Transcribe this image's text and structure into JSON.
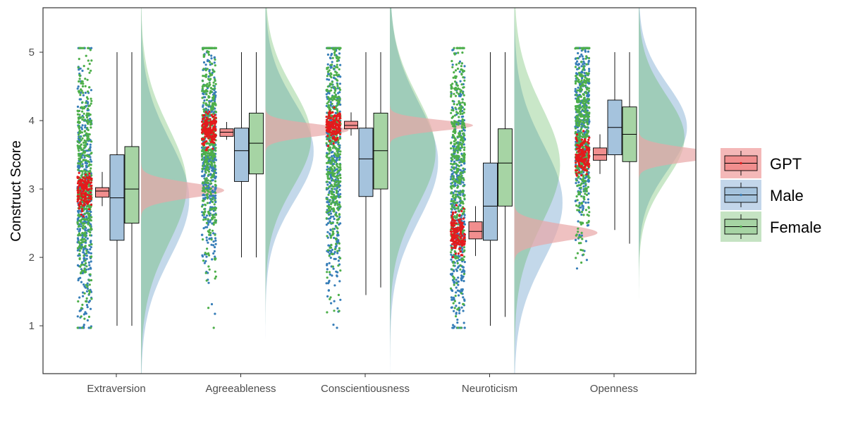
{
  "chart_data": {
    "type": "raincloud",
    "title": "",
    "xlabel": "",
    "ylabel": "Construct Score",
    "ylim": [
      0.3,
      5.65
    ],
    "yticks": [
      1,
      2,
      3,
      4,
      5
    ],
    "grid": false,
    "legend_position": "right",
    "categories": [
      "Extraversion",
      "Agreeableness",
      "Conscientiousness",
      "Neuroticism",
      "Openness"
    ],
    "series": [
      {
        "name": "GPT",
        "fill": "#e41a1c",
        "box": [
          {
            "min": 2.75,
            "q1": 2.88,
            "median": 2.97,
            "q3": 3.02,
            "max": 3.25
          },
          {
            "min": 3.72,
            "q1": 3.77,
            "median": 3.83,
            "q3": 3.88,
            "max": 3.98
          },
          {
            "min": 3.78,
            "q1": 3.88,
            "median": 3.93,
            "q3": 3.99,
            "max": 4.12
          },
          {
            "min": 2.02,
            "q1": 2.27,
            "median": 2.38,
            "q3": 2.52,
            "max": 2.75
          },
          {
            "min": 3.22,
            "q1": 3.42,
            "median": 3.5,
            "q3": 3.6,
            "max": 3.8
          }
        ],
        "density": [
          {
            "mean": 2.98,
            "sd": 0.11,
            "peak": 1.0
          },
          {
            "mean": 3.86,
            "sd": 0.09,
            "peak": 1.0
          },
          {
            "mean": 3.93,
            "sd": 0.08,
            "peak": 1.0
          },
          {
            "mean": 2.36,
            "sd": 0.12,
            "peak": 1.0
          },
          {
            "mean": 3.5,
            "sd": 0.1,
            "peak": 1.0
          }
        ]
      },
      {
        "name": "Male",
        "fill": "#377eb8",
        "box": [
          {
            "min": 1.0,
            "q1": 2.25,
            "median": 2.87,
            "q3": 3.5,
            "max": 5.0
          },
          {
            "min": 2.0,
            "q1": 3.11,
            "median": 3.56,
            "q3": 3.89,
            "max": 5.0
          },
          {
            "min": 1.45,
            "q1": 2.89,
            "median": 3.44,
            "q3": 3.89,
            "max": 5.0
          },
          {
            "min": 1.0,
            "q1": 2.25,
            "median": 2.75,
            "q3": 3.38,
            "max": 5.0
          },
          {
            "min": 2.4,
            "q1": 3.5,
            "median": 3.9,
            "q3": 4.3,
            "max": 5.0
          }
        ],
        "density": [
          {
            "mean": 2.85,
            "sd": 0.85,
            "peak": 0.58
          },
          {
            "mean": 3.55,
            "sd": 0.72,
            "peak": 0.58
          },
          {
            "mean": 3.4,
            "sd": 0.85,
            "peak": 0.58
          },
          {
            "mean": 2.8,
            "sd": 0.85,
            "peak": 0.58
          },
          {
            "mean": 3.9,
            "sd": 0.62,
            "peak": 0.58
          }
        ]
      },
      {
        "name": "Female",
        "fill": "#4daf4a",
        "box": [
          {
            "min": 1.0,
            "q1": 2.5,
            "median": 3.0,
            "q3": 3.62,
            "max": 5.0
          },
          {
            "min": 2.0,
            "q1": 3.22,
            "median": 3.67,
            "q3": 4.11,
            "max": 5.0
          },
          {
            "min": 1.56,
            "q1": 3.0,
            "median": 3.56,
            "q3": 4.11,
            "max": 5.0
          },
          {
            "min": 1.13,
            "q1": 2.75,
            "median": 3.38,
            "q3": 3.88,
            "max": 5.0
          },
          {
            "min": 2.2,
            "q1": 3.4,
            "median": 3.8,
            "q3": 4.2,
            "max": 5.0
          }
        ],
        "density": [
          {
            "mean": 3.05,
            "sd": 0.85,
            "peak": 0.55
          },
          {
            "mean": 3.75,
            "sd": 0.72,
            "peak": 0.55
          },
          {
            "mean": 3.55,
            "sd": 0.8,
            "peak": 0.55
          },
          {
            "mean": 3.35,
            "sd": 0.85,
            "peak": 0.55
          },
          {
            "mean": 3.75,
            "sd": 0.62,
            "peak": 0.55
          }
        ]
      }
    ]
  }
}
